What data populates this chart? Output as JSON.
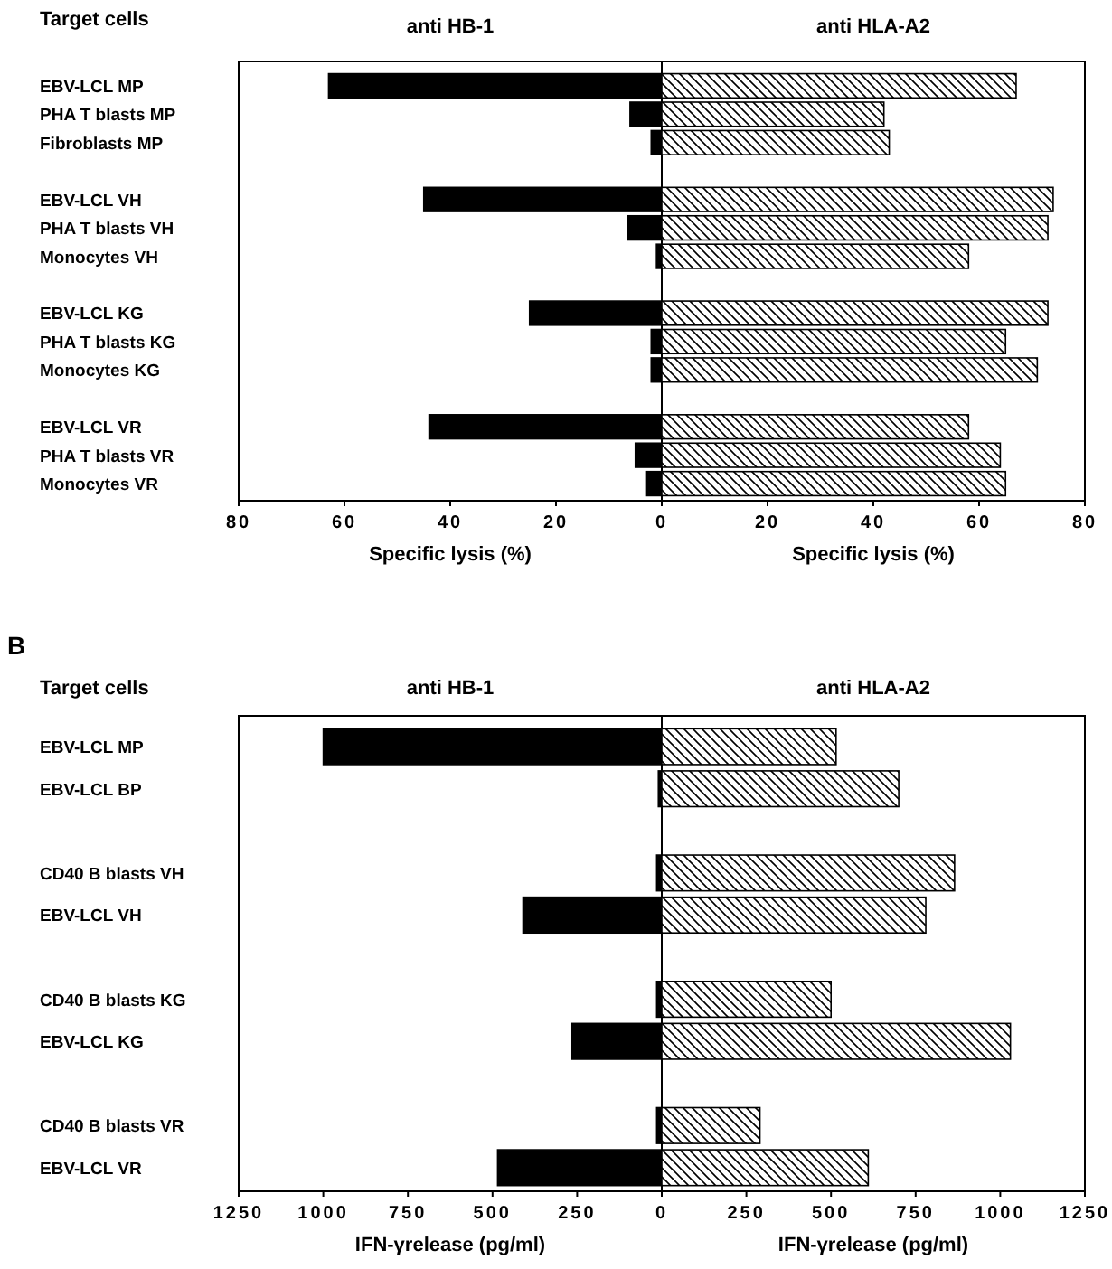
{
  "chart_data": [
    {
      "type": "bar",
      "orientation": "horizontal",
      "title": "anti HB-1",
      "ylabel": "Target cells",
      "xlabel": "Specific lysis (%)",
      "categories": [
        "EBV-LCL MP",
        "PHA T blasts MP",
        "Fibroblasts MP",
        null,
        "EBV-LCL VH",
        "PHA T blasts VH",
        "Monocytes VH",
        null,
        "EBV-LCL KG",
        "PHA T blasts KG",
        "Monocytes KG",
        null,
        "EBV-LCL VR",
        "PHA T blasts VR",
        "Monocytes VR"
      ],
      "series": [
        {
          "color": "#000000",
          "values": [
            63,
            6,
            2,
            null,
            45,
            6.5,
            1,
            null,
            25,
            2,
            2,
            null,
            44,
            5,
            3
          ]
        }
      ],
      "xlim": [
        80,
        0
      ],
      "xticks": [
        80,
        60,
        40,
        20
      ]
    },
    {
      "type": "bar",
      "orientation": "horizontal",
      "title": "anti HLA-A2",
      "xlabel": "Specific lysis (%)",
      "tick_labels": "x",
      "categories": [
        null,
        null,
        null,
        null,
        null,
        null,
        null,
        null,
        null,
        null,
        null,
        null,
        null,
        null,
        null
      ],
      "series": [
        {
          "color": "#000000",
          "values": [
            67,
            42,
            43,
            null,
            74,
            73,
            58,
            null,
            73,
            65,
            71,
            null,
            58,
            64,
            65
          ]
        }
      ],
      "xlim": [
        0,
        80
      ],
      "xticks": [
        0,
        20,
        40,
        60,
        80
      ]
    },
    {
      "type": "bar",
      "orientation": "horizontal",
      "title": "anti HB-1",
      "ylabel": "Target cells",
      "xlabel": "IFN-γrelease (pg/ml)",
      "annotations": [
        "B"
      ],
      "categories": [
        "EBV-LCL MP",
        "EBV-LCL BP",
        null,
        "CD40 B blasts VH",
        "EBV-LCL VH",
        null,
        "CD40 B blasts KG",
        "EBV-LCL KG",
        null,
        "CD40 B blasts VR",
        "EBV-LCL VR"
      ],
      "series": [
        {
          "color": "#000000",
          "values": [
            1000,
            10,
            null,
            15,
            410,
            null,
            15,
            265,
            null,
            15,
            485
          ]
        }
      ],
      "xlim": [
        1250,
        0
      ],
      "xticks": [
        1250,
        1000,
        750,
        500,
        250
      ]
    },
    {
      "type": "bar",
      "orientation": "horizontal",
      "title": "anti HLA-A2",
      "xlabel": "IFN-γrelease (pg/ml)",
      "tick_labels": "x",
      "categories": [
        null,
        null,
        null,
        null,
        null,
        null,
        null,
        null,
        null,
        null,
        null
      ],
      "series": [
        {
          "color": "#000000",
          "values": [
            515,
            700,
            null,
            865,
            780,
            null,
            500,
            1030,
            null,
            290,
            610
          ]
        }
      ],
      "xlim": [
        0,
        1250
      ],
      "xticks": [
        0,
        250,
        500,
        750,
        1000,
        1250
      ]
    }
  ]
}
